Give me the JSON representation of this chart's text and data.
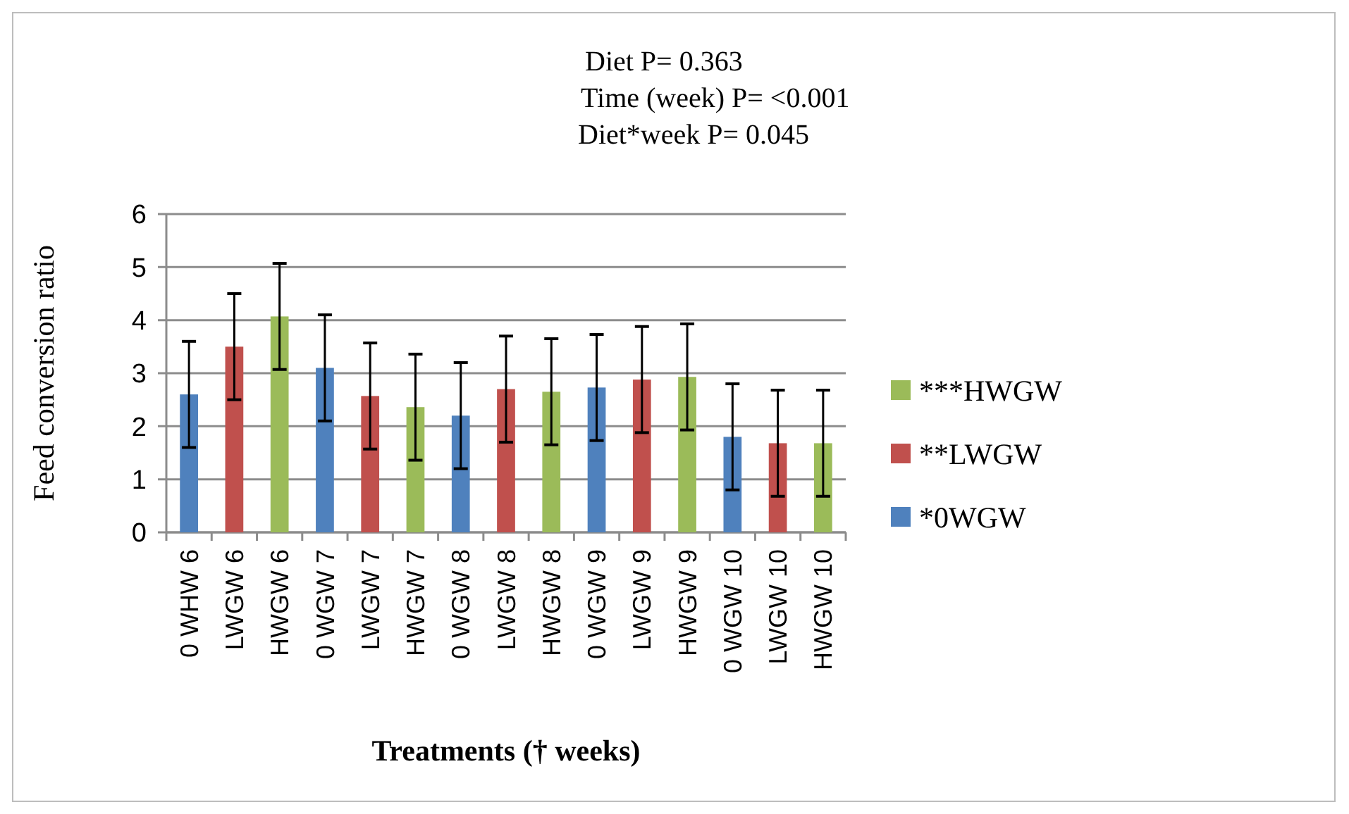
{
  "chart_data": {
    "type": "bar",
    "xlabel": "Treatments († weeks)",
    "ylabel": "Feed conversion ratio",
    "annotations": [
      "Diet P= 0.363",
      "Time (week) P= <0.001",
      "Diet*week P= 0.045"
    ],
    "categories": [
      "0 WHW 6",
      "LWGW 6",
      "HWGW 6",
      "0 WGW 7",
      "LWGW 7",
      "HWGW 7",
      "0 WGW 8",
      "LWGW 8",
      "HWGW 8",
      "0 WGW 9",
      "LWGW 9",
      "HWGW 9",
      "0 WGW 10",
      "LWGW 10",
      "HWGW 10"
    ],
    "series": [
      {
        "name": "*0WGW",
        "color": "#4f81bd",
        "values": [
          2.6,
          null,
          null,
          3.1,
          null,
          null,
          2.2,
          null,
          null,
          2.73,
          null,
          null,
          1.8,
          null,
          null
        ],
        "errors": [
          1,
          null,
          null,
          1,
          null,
          null,
          1,
          null,
          null,
          1,
          null,
          null,
          1,
          null,
          null
        ]
      },
      {
        "name": "**LWGW",
        "color": "#c0504d",
        "values": [
          null,
          3.5,
          null,
          null,
          2.57,
          null,
          null,
          2.7,
          null,
          null,
          2.88,
          null,
          null,
          1.68,
          null
        ],
        "errors": [
          null,
          1,
          null,
          null,
          1,
          null,
          null,
          1,
          null,
          null,
          1,
          null,
          null,
          1,
          null
        ]
      },
      {
        "name": "***HWGW",
        "color": "#9bbb59",
        "values": [
          null,
          null,
          4.07,
          null,
          null,
          2.36,
          null,
          null,
          2.65,
          null,
          null,
          2.93,
          null,
          null,
          1.68
        ],
        "errors": [
          null,
          null,
          1,
          null,
          null,
          1,
          null,
          null,
          1,
          null,
          null,
          1,
          null,
          null,
          1
        ]
      }
    ],
    "ylim": [
      0,
      6
    ],
    "yticks": [
      0,
      1,
      2,
      3,
      4,
      5,
      6
    ],
    "grid": "y",
    "legend": "right"
  }
}
